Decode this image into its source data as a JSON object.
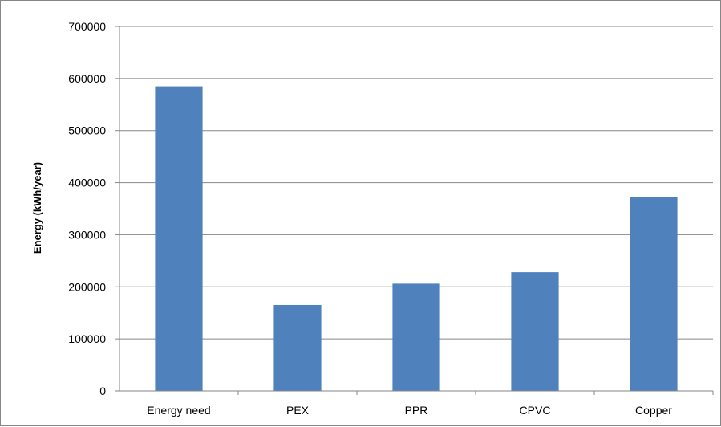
{
  "chart_data": {
    "type": "bar",
    "title": "",
    "xlabel": "",
    "ylabel": "Energy (kWh/year)",
    "categories": [
      "Energy need",
      "PEX",
      "PPR",
      "CPVC",
      "Copper"
    ],
    "values": [
      585000,
      165000,
      206000,
      228000,
      373000
    ],
    "ylim": [
      0,
      700000
    ],
    "yticks": [
      "0",
      "100000",
      "200000",
      "300000",
      "400000",
      "500000",
      "600000",
      "700000"
    ],
    "grid": true,
    "legend": "none",
    "colors": {
      "bar": "#4f81bd",
      "grid": "#868686",
      "axis": "#868686"
    }
  }
}
